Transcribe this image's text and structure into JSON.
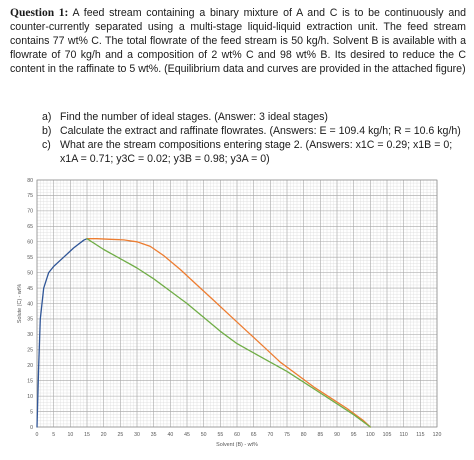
{
  "question": {
    "label": "Question 1:",
    "text": "A feed stream containing a binary mixture of A and C is to be continuously and counter-currently separated using a multi-stage liquid-liquid extraction unit. The feed stream contains 77 wt% C. The total flowrate of the feed stream is 50 kg/h. Solvent B is available with a flowrate of 70 kg/h and a composition of 2 wt% C and 98 wt% B. Its desired to reduce the C content in the raffinate to 5 wt%. (Equilibrium data and curves are provided in the attached figure)"
  },
  "parts": [
    {
      "label": "a)",
      "text": "Find the number of ideal stages. (Answer: 3 ideal stages)"
    },
    {
      "label": "b)",
      "text": "Calculate the extract and raffinate flowrates. (Answers: E = 109.4 kg/h; R = 10.6 kg/h)"
    },
    {
      "label": "c)",
      "text": "What are the stream compositions entering stage 2. (Answers: x1C = 0.29; x1B = 0; x1A = 0.71; y3C = 0.02; y3B = 0.98; y3A = 0)"
    }
  ],
  "chart_data": {
    "type": "line",
    "xlabel": "Solvent (B) - wt%",
    "ylabel": "Solute (C) - wt%",
    "xlim": [
      0,
      120
    ],
    "ylim": [
      0,
      80
    ],
    "xticks": [
      0,
      5,
      10,
      15,
      20,
      25,
      30,
      35,
      40,
      45,
      50,
      55,
      60,
      65,
      70,
      75,
      80,
      85,
      90,
      95,
      100,
      105,
      110,
      115,
      120
    ],
    "yticks": [
      0,
      5,
      10,
      15,
      20,
      25,
      30,
      35,
      40,
      45,
      50,
      55,
      60,
      65,
      70,
      75,
      80
    ],
    "grid": true,
    "colors": {
      "blue": "#2f5597",
      "orange": "#ed7d31",
      "green": "#70ad47"
    },
    "series": [
      {
        "color": "blue",
        "x": [
          0,
          0.5,
          1,
          2,
          3.5,
          5,
          8,
          11,
          14,
          15
        ],
        "y": [
          0,
          20,
          35,
          45,
          50,
          52,
          55,
          58,
          60.5,
          61
        ]
      },
      {
        "color": "orange",
        "x": [
          15,
          18,
          22,
          26,
          30,
          34,
          38,
          43,
          48,
          53,
          58,
          63,
          68,
          73,
          78,
          83,
          88,
          93,
          98,
          100
        ],
        "y": [
          61,
          61,
          60.8,
          60.6,
          60,
          58.5,
          55.5,
          51,
          46,
          41,
          36,
          31,
          26,
          21,
          17,
          13,
          9.5,
          6,
          2,
          0
        ]
      },
      {
        "color": "green",
        "x": [
          15,
          20,
          25,
          30,
          35,
          40,
          45,
          50,
          55,
          60,
          65,
          70,
          75,
          80,
          85,
          90,
          95,
          100
        ],
        "y": [
          61,
          57.5,
          54.5,
          51.5,
          48,
          44,
          40,
          35.5,
          31,
          27,
          24,
          21,
          18,
          14.5,
          11,
          7.5,
          4,
          0
        ]
      }
    ]
  }
}
